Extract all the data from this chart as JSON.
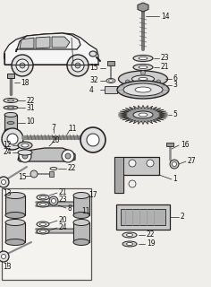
{
  "bg_color": "#f0eeea",
  "line_color": "#222222",
  "text_color": "#111111",
  "fig_width": 2.36,
  "fig_height": 3.2,
  "dpi": 100
}
